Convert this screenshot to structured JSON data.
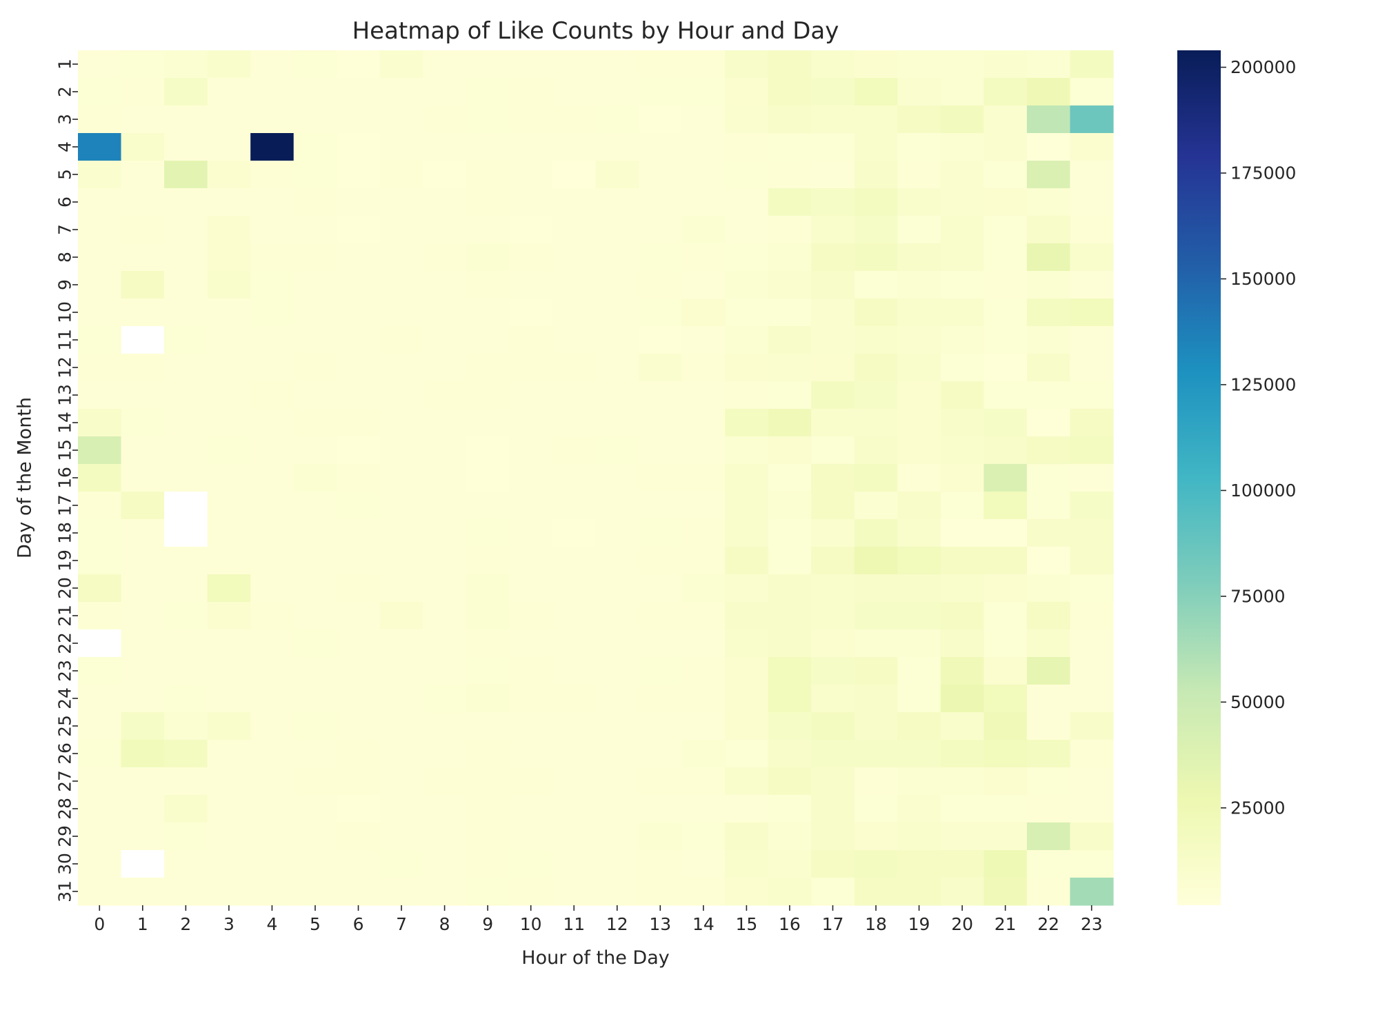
{
  "chart_data": {
    "type": "heatmap",
    "title": "Heatmap of Like Counts by Hour and Day",
    "xlabel": "Hour of the Day",
    "ylabel": "Day of the Month",
    "x_categories": [
      "0",
      "1",
      "2",
      "3",
      "4",
      "5",
      "6",
      "7",
      "8",
      "9",
      "10",
      "11",
      "12",
      "13",
      "14",
      "15",
      "16",
      "17",
      "18",
      "19",
      "20",
      "21",
      "22",
      "23"
    ],
    "y_categories": [
      "1",
      "2",
      "3",
      "4",
      "5",
      "6",
      "7",
      "8",
      "9",
      "10",
      "11",
      "12",
      "13",
      "14",
      "15",
      "16",
      "17",
      "18",
      "19",
      "20",
      "21",
      "22",
      "23",
      "24",
      "25",
      "26",
      "27",
      "28",
      "29",
      "30",
      "31"
    ],
    "values": [
      [
        4000,
        6000,
        7000,
        11000,
        4000,
        6000,
        3000,
        9000,
        4000,
        4000,
        4000,
        4000,
        4000,
        5000,
        5000,
        13000,
        15000,
        10000,
        8000,
        7000,
        7000,
        9000,
        7000,
        17000
      ],
      [
        6000,
        5000,
        14000,
        4000,
        4000,
        4000,
        4000,
        4000,
        4000,
        6000,
        5000,
        4000,
        4000,
        6000,
        6000,
        8000,
        16000,
        14000,
        20000,
        9000,
        7000,
        18000,
        25000,
        6000
      ],
      [
        5000,
        4000,
        4000,
        4000,
        4000,
        4000,
        4000,
        4000,
        5000,
        6000,
        5000,
        5000,
        6000,
        3000,
        4000,
        9000,
        13000,
        11000,
        11000,
        16000,
        19000,
        9000,
        55000,
        85000
      ],
      [
        135000,
        11000,
        4000,
        4000,
        204000,
        6000,
        3000,
        4000,
        4000,
        4000,
        4000,
        4000,
        4000,
        4000,
        4000,
        5000,
        6000,
        6000,
        10000,
        6000,
        7000,
        9000,
        3000,
        8000
      ],
      [
        9000,
        4000,
        34000,
        8000,
        5000,
        6000,
        3000,
        5000,
        3000,
        5000,
        4000,
        2000,
        9000,
        4000,
        4000,
        6000,
        5000,
        4000,
        12000,
        5000,
        9000,
        6000,
        40000,
        4000
      ],
      [
        4000,
        4000,
        4000,
        4000,
        4000,
        5000,
        4000,
        4000,
        4000,
        5000,
        4000,
        4000,
        4000,
        4000,
        4000,
        4000,
        17000,
        14000,
        17000,
        10000,
        9000,
        8000,
        7000,
        4000
      ],
      [
        4000,
        5000,
        4000,
        8000,
        4000,
        4000,
        3000,
        4000,
        4000,
        4000,
        3000,
        4000,
        4000,
        4000,
        7000,
        4000,
        5000,
        10000,
        14000,
        6000,
        10000,
        6000,
        12000,
        5000
      ],
      [
        4000,
        4000,
        4000,
        8000,
        5000,
        5000,
        4000,
        4000,
        5000,
        7000,
        5000,
        4000,
        4000,
        6000,
        5000,
        6000,
        7000,
        15000,
        17000,
        12000,
        10000,
        6000,
        30000,
        10000
      ],
      [
        4000,
        15000,
        4000,
        10000,
        6000,
        4000,
        4000,
        4000,
        4000,
        5000,
        4000,
        4000,
        4000,
        5000,
        4000,
        7000,
        9000,
        13000,
        6000,
        7000,
        6000,
        5000,
        7000,
        4000
      ],
      [
        4000,
        4000,
        4000,
        4000,
        6000,
        4000,
        4000,
        4000,
        4000,
        4000,
        3000,
        4000,
        4000,
        6000,
        8000,
        6000,
        6000,
        9000,
        15000,
        11000,
        10000,
        6000,
        17000,
        20000
      ],
      [
        6000,
        null,
        6000,
        4000,
        4000,
        4000,
        4000,
        5000,
        4000,
        4000,
        5000,
        4000,
        4000,
        3000,
        4000,
        7000,
        12000,
        9000,
        11000,
        9000,
        7000,
        6000,
        7000,
        4000
      ],
      [
        5000,
        5000,
        4000,
        4000,
        4000,
        5000,
        4000,
        4000,
        4000,
        5000,
        5000,
        5000,
        4000,
        9000,
        5000,
        8000,
        9000,
        8000,
        15000,
        10000,
        6000,
        3000,
        12000,
        4000
      ],
      [
        4000,
        4000,
        4000,
        4000,
        5000,
        4000,
        4000,
        4000,
        5000,
        5000,
        4000,
        4000,
        4000,
        4000,
        4000,
        5000,
        6000,
        18000,
        14000,
        8000,
        15000,
        6000,
        6000,
        6000
      ],
      [
        12000,
        6000,
        4000,
        4000,
        4000,
        5000,
        5000,
        4000,
        4000,
        4000,
        4000,
        4000,
        4000,
        4000,
        4000,
        18000,
        22000,
        10000,
        11000,
        8000,
        12000,
        14000,
        3000,
        16000
      ],
      [
        42000,
        4000,
        4000,
        6000,
        4000,
        4000,
        3000,
        4000,
        4000,
        3000,
        4000,
        5000,
        6000,
        4000,
        4000,
        7000,
        8000,
        6000,
        12000,
        8000,
        10000,
        13000,
        16000,
        17000
      ],
      [
        18000,
        4000,
        4000,
        4000,
        4000,
        7000,
        5000,
        4000,
        4000,
        3000,
        4000,
        4000,
        4000,
        5000,
        5000,
        10000,
        6000,
        16000,
        18000,
        5000,
        8000,
        40000,
        6000,
        4000
      ],
      [
        5000,
        15000,
        null,
        4000,
        4000,
        4000,
        6000,
        4000,
        4000,
        4000,
        4000,
        4000,
        4000,
        4000,
        4000,
        10000,
        7000,
        16000,
        7000,
        12000,
        6000,
        20000,
        6000,
        14000
      ],
      [
        6000,
        4000,
        null,
        4000,
        4000,
        4000,
        4000,
        4000,
        4000,
        6000,
        4000,
        3000,
        4000,
        6000,
        5000,
        10000,
        6000,
        9000,
        18000,
        11000,
        3000,
        3000,
        12000,
        13000
      ],
      [
        6000,
        4000,
        4000,
        4000,
        4000,
        4000,
        4000,
        4000,
        4000,
        5000,
        4000,
        4000,
        4000,
        5000,
        5000,
        15000,
        6000,
        16000,
        26000,
        20000,
        16000,
        16000,
        3000,
        13000
      ],
      [
        16000,
        4000,
        4000,
        20000,
        4000,
        4000,
        5000,
        4000,
        4000,
        7000,
        4000,
        4000,
        4000,
        4000,
        7000,
        9000,
        13000,
        10000,
        12000,
        12000,
        10000,
        8000,
        7000,
        6000
      ],
      [
        5000,
        4000,
        6000,
        8000,
        5000,
        4000,
        4000,
        8000,
        4000,
        7000,
        5000,
        4000,
        4000,
        5000,
        5000,
        12000,
        12000,
        10000,
        14000,
        14000,
        15000,
        6000,
        16000,
        5000
      ],
      [
        null,
        4000,
        4000,
        4000,
        4000,
        6000,
        4000,
        4000,
        4000,
        5000,
        4000,
        4000,
        4000,
        4000,
        4000,
        11000,
        12000,
        8000,
        7000,
        7000,
        13000,
        6000,
        10000,
        4000
      ],
      [
        6000,
        4000,
        4000,
        4000,
        4000,
        4000,
        4000,
        4000,
        4000,
        6000,
        5000,
        4000,
        4000,
        6000,
        5000,
        8000,
        20000,
        14000,
        15000,
        6000,
        22000,
        8000,
        32000,
        4000
      ],
      [
        4000,
        4000,
        6000,
        4000,
        4000,
        4000,
        4000,
        4000,
        6000,
        7000,
        5000,
        5000,
        4000,
        5000,
        5000,
        8000,
        20000,
        11000,
        12000,
        6000,
        28000,
        20000,
        4000,
        4000
      ],
      [
        4000,
        14000,
        7000,
        10000,
        4000,
        6000,
        4000,
        4000,
        4000,
        4000,
        4000,
        4000,
        4000,
        4000,
        4000,
        8000,
        14000,
        18000,
        13000,
        15000,
        10000,
        22000,
        4000,
        12000
      ],
      [
        6000,
        21000,
        17000,
        4000,
        4000,
        4000,
        5000,
        4000,
        4000,
        5000,
        4000,
        4000,
        4000,
        4000,
        7000,
        6000,
        12000,
        14000,
        14000,
        14000,
        18000,
        20000,
        18000,
        5000
      ],
      [
        4000,
        4000,
        4000,
        4000,
        4000,
        5000,
        5000,
        4000,
        5000,
        5000,
        5000,
        4000,
        4000,
        5000,
        5000,
        10000,
        15000,
        12000,
        5000,
        7000,
        7000,
        8000,
        6000,
        4000
      ],
      [
        4000,
        4000,
        10000,
        4000,
        4000,
        4000,
        3000,
        4000,
        4000,
        5000,
        4000,
        4000,
        4000,
        4000,
        4000,
        4000,
        6000,
        12000,
        6000,
        9000,
        6000,
        6000,
        5000,
        4000
      ],
      [
        4000,
        4000,
        6000,
        4000,
        4000,
        4000,
        5000,
        4000,
        4000,
        5000,
        4000,
        4000,
        4000,
        7000,
        6000,
        12000,
        7000,
        13000,
        8000,
        11000,
        9000,
        9000,
        42000,
        12000
      ],
      [
        4000,
        null,
        4000,
        4000,
        4000,
        4000,
        4000,
        6000,
        4000,
        5000,
        6000,
        4000,
        4000,
        5000,
        4000,
        10000,
        9000,
        16000,
        17000,
        16000,
        15000,
        24000,
        6000,
        6000
      ],
      [
        4000,
        4000,
        4000,
        4000,
        4000,
        4000,
        4000,
        4000,
        4000,
        6000,
        5000,
        4000,
        4000,
        5000,
        5000,
        8000,
        10000,
        6000,
        16000,
        16000,
        12000,
        22000,
        5000,
        65000
      ]
    ],
    "colorbar": {
      "colormap": "YlGnBu",
      "vmin": 2000,
      "vmax": 204000,
      "ticks": [
        25000,
        50000,
        75000,
        100000,
        125000,
        150000,
        175000,
        200000
      ],
      "tick_labels": [
        "25000",
        "50000",
        "75000",
        "100000",
        "125000",
        "150000",
        "175000",
        "200000"
      ]
    },
    "missing_color": "#ffffff"
  }
}
